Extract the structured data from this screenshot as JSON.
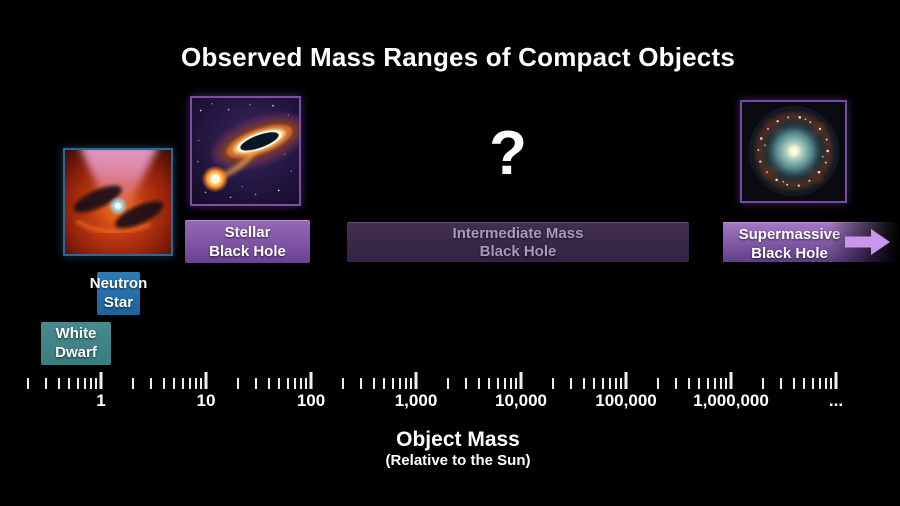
{
  "title": "Observed Mass Ranges of Compact Objects",
  "unknown_region": {
    "symbol": "?"
  },
  "labels": {
    "white_dwarf": {
      "line1": "White",
      "line2": "Dwarf"
    },
    "neutron_star": {
      "line1": "Neutron",
      "line2": "Star"
    },
    "stellar_black_hole": {
      "line1": "Stellar",
      "line2": "Black Hole"
    },
    "intermediate_black_hole": {
      "line1": "Intermediate Mass",
      "line2": "Black Hole"
    },
    "supermassive_black_hole": {
      "line1": "Supermassive",
      "line2": "Black Hole"
    }
  },
  "axis": {
    "tick_labels": [
      "1",
      "10",
      "100",
      "1,000",
      "10,000",
      "100,000",
      "1,000,000",
      "..."
    ],
    "title": "Object Mass",
    "subtitle": "(Relative to the Sun)"
  },
  "icons": {
    "neutron_star_image": "artist-impression-neutron-star-with-red-accretion-disk",
    "stellar_black_hole_image": "artist-impression-black-hole-pulling-matter-from-companion-star",
    "supermassive_black_hole_image": "spiral-galaxy-with-bright-core",
    "arrow_right": "arrow-right-icon-open-ended-range"
  },
  "colors": {
    "background": "#000000",
    "white_dwarf_box": "#3e8184",
    "neutron_star_box": "#2272aa",
    "stellar_black_hole_bar": "#7d51a3",
    "intermediate_black_hole_bar": "#3d2a4a",
    "intermediate_text": "#a99aba",
    "supermassive_black_hole_bar": "#8a5fb0",
    "arrow": "#c897ec",
    "ticks": "#efefef",
    "text": "#ffffff"
  },
  "chart_data": {
    "type": "range",
    "title": "Observed Mass Ranges of Compact Objects",
    "xlabel": "Object Mass (Relative to the Sun)",
    "x_scale": "log",
    "x_tick_values": [
      1,
      10,
      100,
      1000,
      10000,
      100000,
      1000000
    ],
    "x_tick_labels": [
      "1",
      "10",
      "100",
      "1,000",
      "10,000",
      "100,000",
      "1,000,000",
      "..."
    ],
    "x_range_shown": [
      0.2,
      10000000
    ],
    "grid": false,
    "legend": false,
    "series": [
      {
        "name": "White Dwarf",
        "mass_min_solar": 0.3,
        "mass_max_solar": 1.2,
        "color": "#3e8184",
        "uncertain": false,
        "open_ended": false
      },
      {
        "name": "Neutron Star",
        "mass_min_solar": 1.0,
        "mass_max_solar": 2.3,
        "color": "#2272aa",
        "uncertain": false,
        "open_ended": false
      },
      {
        "name": "Stellar Black Hole",
        "mass_min_solar": 6,
        "mass_max_solar": 100,
        "color": "#7d51a3",
        "uncertain": false,
        "open_ended": false
      },
      {
        "name": "Intermediate Mass Black Hole",
        "mass_min_solar": 220,
        "mass_max_solar": 400000,
        "color": "#3d2a4a",
        "uncertain": true,
        "open_ended": false
      },
      {
        "name": "Supermassive Black Hole",
        "mass_min_solar": 800000,
        "mass_max_solar": null,
        "color": "#8a5fb0",
        "uncertain": false,
        "open_ended": true
      }
    ]
  }
}
